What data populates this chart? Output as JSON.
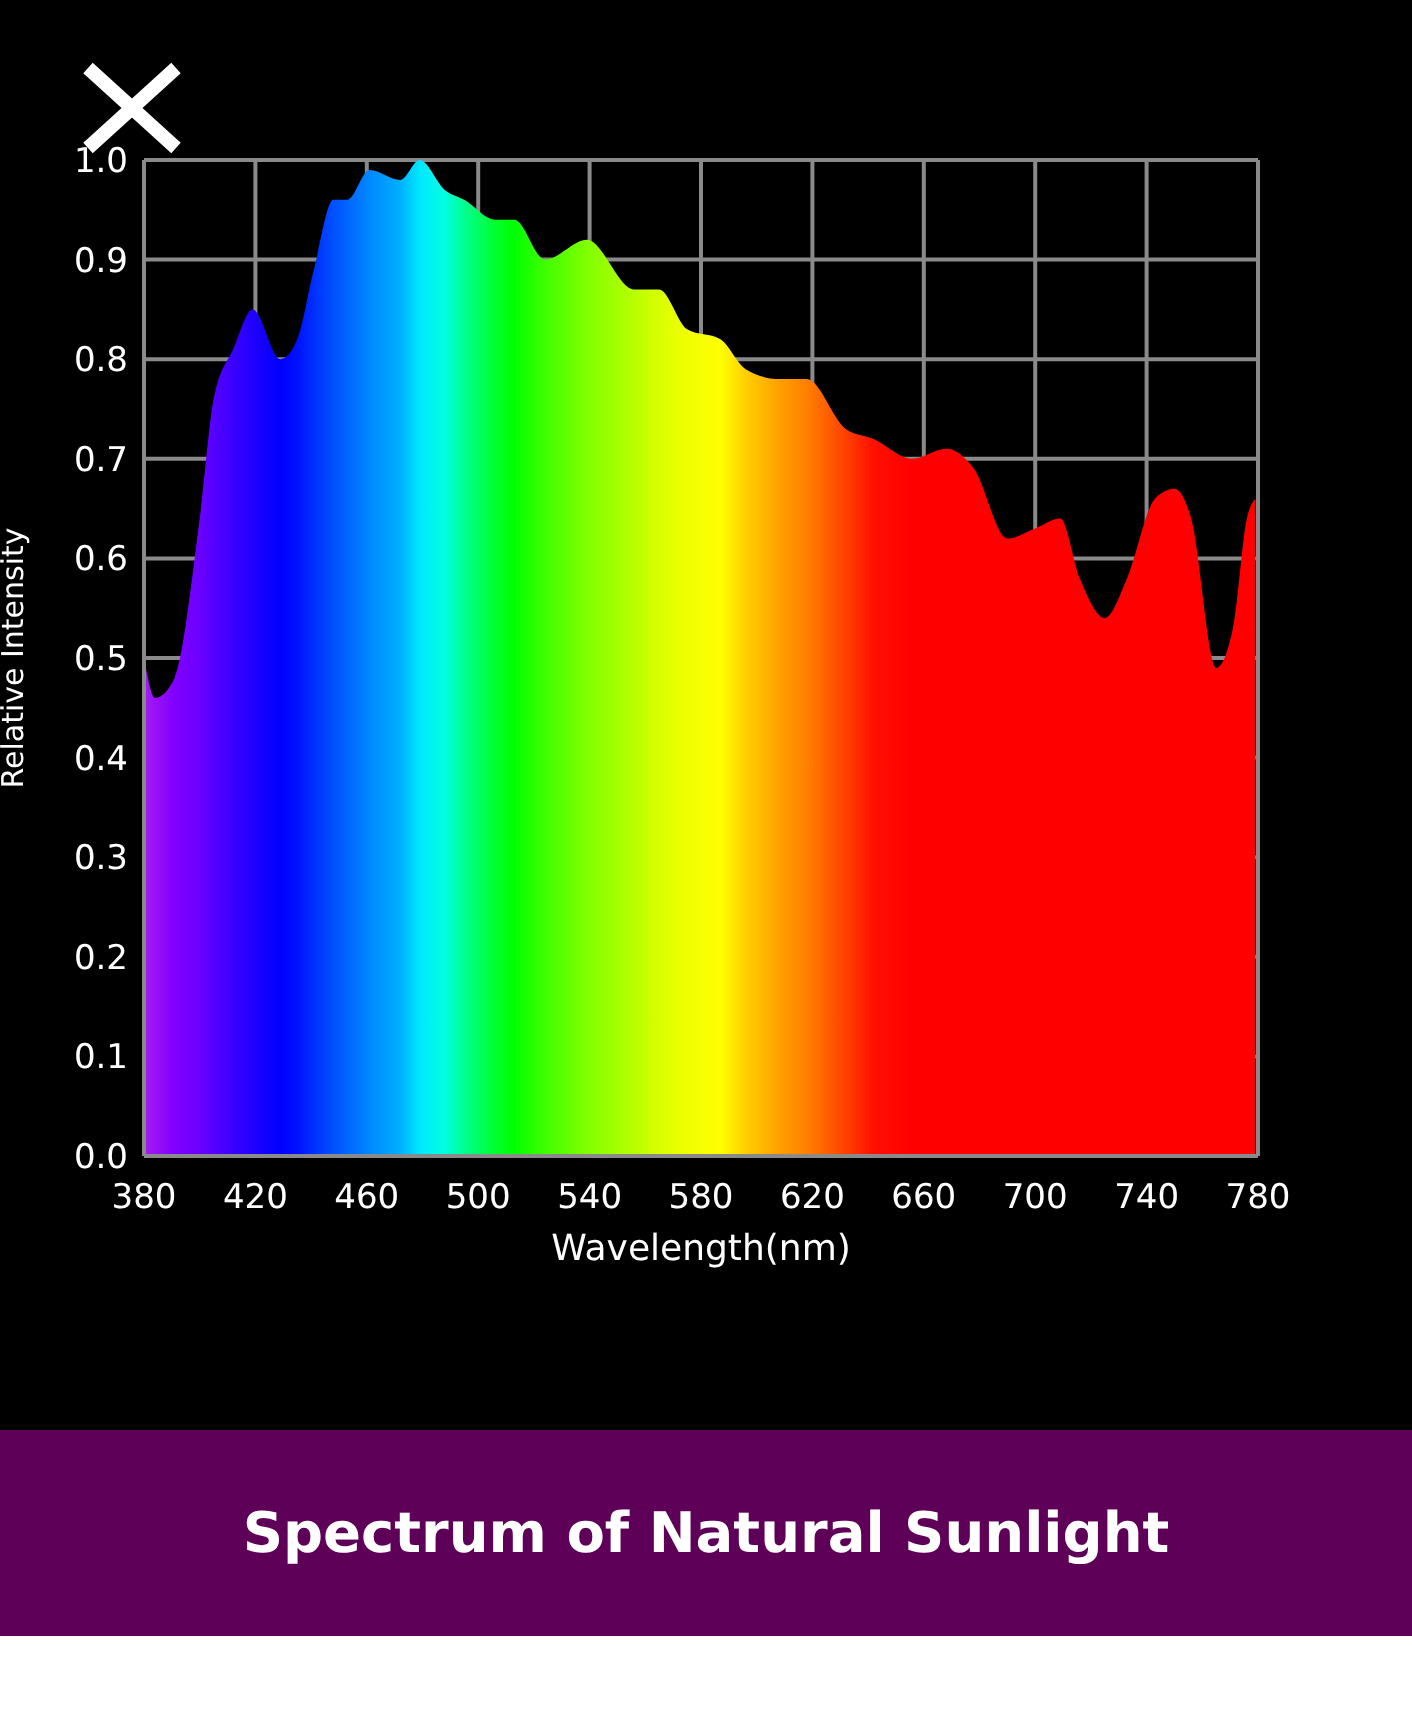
{
  "chart_data": {
    "type": "area",
    "title": "Spectrum of Natural Sunlight",
    "xlabel": "Wavelength(nm)",
    "ylabel": "Relative Intensity",
    "x": [
      380,
      384,
      391,
      400,
      405,
      412,
      419,
      429,
      435,
      441,
      448,
      453,
      461,
      472,
      479,
      488,
      495,
      506,
      513,
      524,
      539,
      556,
      565,
      575,
      587,
      596,
      608,
      618,
      632,
      642,
      656,
      668,
      678,
      690,
      700,
      709,
      716,
      725,
      733,
      743,
      750,
      756,
      765,
      771,
      776,
      779
    ],
    "values": [
      0.5,
      0.46,
      0.48,
      0.64,
      0.76,
      0.81,
      0.85,
      0.8,
      0.82,
      0.89,
      0.96,
      0.96,
      0.99,
      0.98,
      1.0,
      0.97,
      0.96,
      0.94,
      0.94,
      0.9,
      0.92,
      0.87,
      0.87,
      0.83,
      0.82,
      0.79,
      0.78,
      0.78,
      0.73,
      0.72,
      0.7,
      0.71,
      0.69,
      0.62,
      0.63,
      0.64,
      0.58,
      0.54,
      0.58,
      0.66,
      0.67,
      0.64,
      0.49,
      0.53,
      0.64,
      0.66
    ],
    "colors": [
      "#a020f0",
      "#9a10f8",
      "#8000ff",
      "#6a00ff",
      "#5500ff",
      "#3a00ff",
      "#2000ff",
      "#0000ff",
      "#0010ff",
      "#0030ff",
      "#0050ff",
      "#0066ff",
      "#0088ff",
      "#00b0ff",
      "#00e8ff",
      "#00ffe0",
      "#00ff90",
      "#00ff30",
      "#00ff00",
      "#40ff00",
      "#80ff00",
      "#b8ff00",
      "#d8ff00",
      "#f0ff00",
      "#ffff00",
      "#ffd000",
      "#ffa000",
      "#ff8000",
      "#ff4000",
      "#ff1000",
      "#ff0000",
      "#ff0000",
      "#ff0000",
      "#ff0000",
      "#ff0000",
      "#ff0000",
      "#ff0000",
      "#ff0000",
      "#ff0000",
      "#ff0000",
      "#ff0000",
      "#ff0000",
      "#ff0000",
      "#ff0000",
      "#ff0000",
      "#ff0000"
    ],
    "xlim": [
      380,
      780
    ],
    "xticks": [
      380,
      420,
      460,
      500,
      540,
      580,
      620,
      660,
      700,
      740,
      780
    ],
    "ylim": [
      0,
      1
    ],
    "yticks": [
      {
        "value": 0,
        "label": "0.0"
      },
      0.1,
      0.2,
      0.3,
      0.4,
      0.5,
      0.6,
      0.7,
      0.8,
      0.9,
      {
        "value": 1,
        "label": "1.0"
      }
    ],
    "grid": true
  }
}
